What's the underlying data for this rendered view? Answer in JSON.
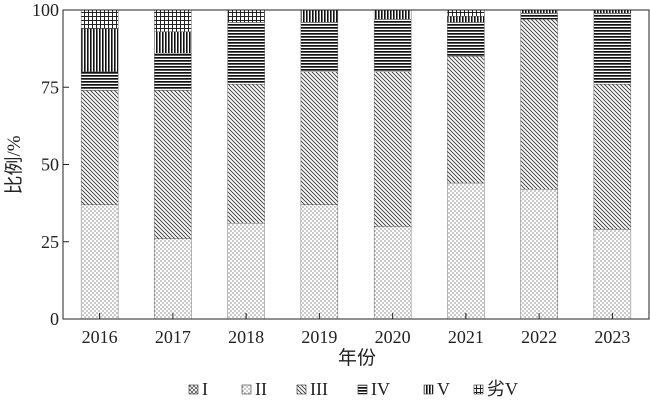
{
  "chart_data": {
    "type": "bar",
    "stacked": true,
    "categories": [
      "2016",
      "2017",
      "2018",
      "2019",
      "2020",
      "2021",
      "2022",
      "2023"
    ],
    "series": [
      {
        "name": "I",
        "pattern": "diag-dots",
        "values": [
          0,
          0,
          0,
          0,
          0,
          0,
          0,
          0
        ]
      },
      {
        "name": "II",
        "pattern": "fine-dots",
        "values": [
          37,
          26,
          31,
          37,
          30,
          44,
          42,
          29
        ]
      },
      {
        "name": "III",
        "pattern": "diagonal-lines",
        "values": [
          37,
          48,
          45,
          43,
          50,
          41,
          55,
          47
        ]
      },
      {
        "name": "IV",
        "pattern": "horizontal-lines",
        "values": [
          6,
          12,
          20,
          16,
          17,
          11,
          2,
          23
        ]
      },
      {
        "name": "V",
        "pattern": "vertical-lines",
        "values": [
          14,
          7,
          0,
          4,
          3,
          2,
          1,
          1
        ]
      },
      {
        "name": "劣V",
        "pattern": "grid",
        "values": [
          6,
          7,
          4,
          0,
          0,
          2,
          0,
          0
        ]
      }
    ],
    "xlabel": "年份",
    "ylabel": "比例/%",
    "ylim": [
      0,
      100
    ],
    "yticks": [
      "0",
      "25",
      "50",
      "75",
      "100"
    ],
    "grid": false,
    "legend_position": "bottom"
  }
}
